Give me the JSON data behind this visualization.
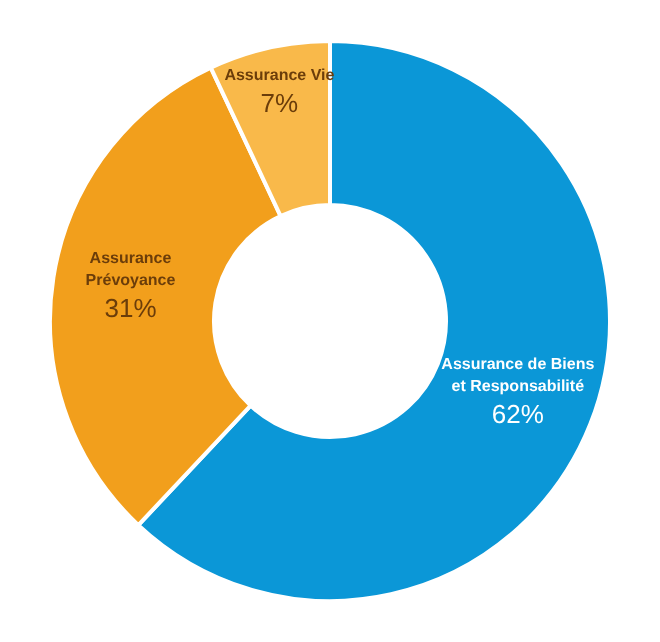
{
  "chart_data": {
    "type": "donut",
    "categories": [
      "Assurance de Biens\net Responsabilité",
      "Assurance\nPrévoyance",
      "Assurance Vie"
    ],
    "values": [
      62,
      31,
      7
    ],
    "colors": [
      "#0b97d7",
      "#f29f1c",
      "#f9b94a"
    ],
    "value_labels": [
      "62%",
      "31%",
      "7%"
    ],
    "legend": false
  }
}
